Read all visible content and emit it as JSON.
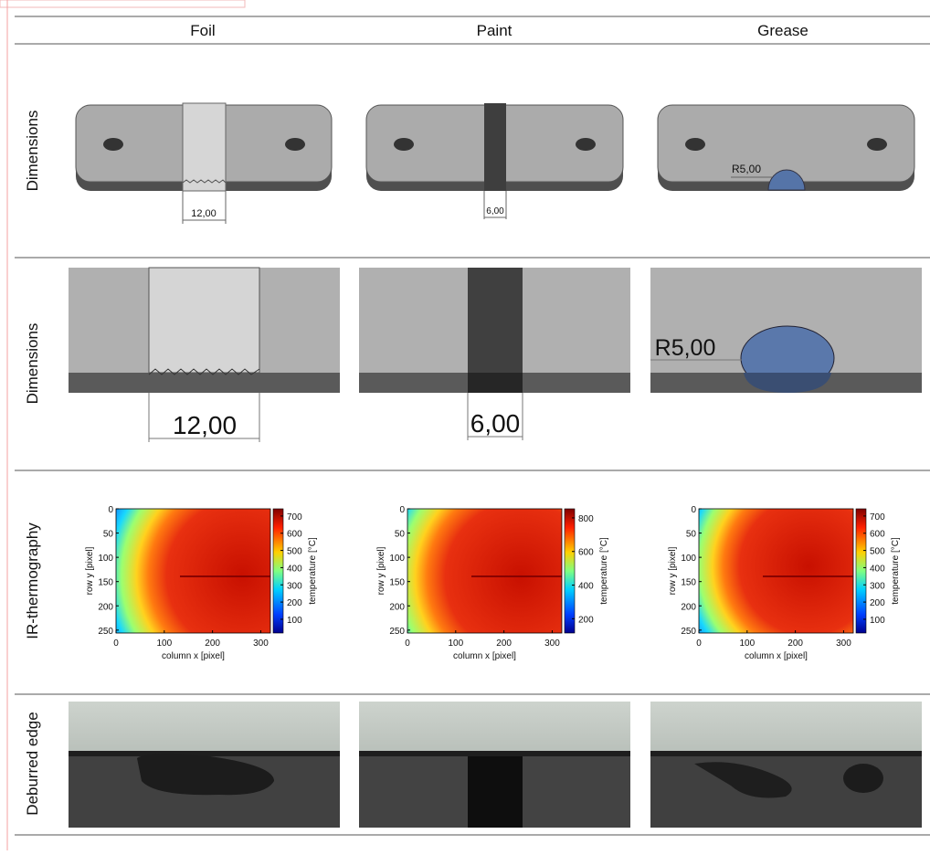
{
  "header": {
    "columns": [
      "Foil",
      "Paint",
      "Grease"
    ]
  },
  "rows": [
    {
      "label": "Dimensions",
      "annotations": [
        "12,00",
        "6,00",
        "R5,00"
      ]
    },
    {
      "label": "Dimensions",
      "annotations": [
        "12,00",
        "6,00",
        "R5,00"
      ]
    },
    {
      "label": "IR-thermography"
    },
    {
      "label": "Deburred edge"
    }
  ],
  "thermography": {
    "x_label": "column x [pixel]",
    "y_label": "row y [pixel]",
    "colorbar_label": "temperature [°C]",
    "xlim": [
      0,
      320
    ],
    "ylim": [
      0,
      256
    ],
    "xticks": [
      0,
      100,
      200,
      300
    ],
    "yticks": [
      0,
      50,
      100,
      150,
      200,
      250
    ],
    "panels": [
      {
        "clim": [
          20,
          742
        ],
        "cticks": [
          100,
          200,
          300,
          400,
          500,
          600,
          700
        ]
      },
      {
        "clim": [
          115,
          854
        ],
        "cticks": [
          200,
          400,
          600,
          800
        ]
      },
      {
        "clim": [
          20,
          742
        ],
        "cticks": [
          100,
          200,
          300,
          400,
          500,
          600,
          700
        ]
      }
    ]
  }
}
